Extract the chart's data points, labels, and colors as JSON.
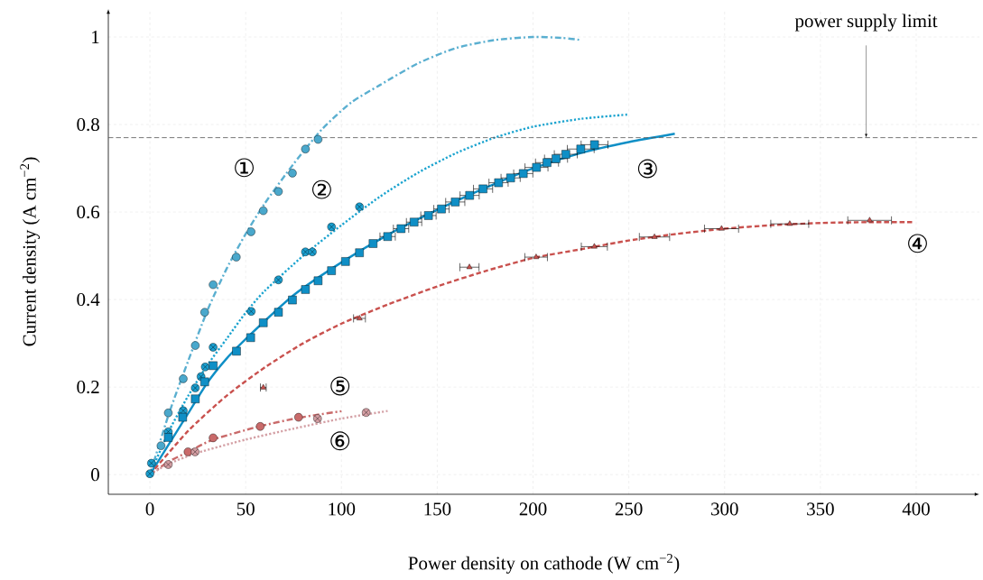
{
  "chart_data": {
    "type": "scatter",
    "xlabel": "Power density on cathode (W cm$^{−2}$)",
    "ylabel": "Current density (A cm$^{−2}$)",
    "xlim": [
      -21.7,
      433
    ],
    "ylim": [
      -0.045,
      1.064
    ],
    "xticks": [
      0,
      50,
      100,
      150,
      200,
      250,
      300,
      350,
      400
    ],
    "yticks": [
      0,
      0.2,
      0.4,
      0.6,
      0.8,
      1
    ],
    "grid": true,
    "series": [
      {
        "type": "line",
        "line_style": "dashdot",
        "color": "#5aafd0",
        "x": [
          0,
          10,
          20,
          30,
          40,
          50,
          60,
          75,
          90,
          105,
          120,
          140,
          160,
          180,
          200,
          215,
          225
        ],
        "values": [
          0,
          0.14,
          0.26,
          0.375,
          0.47,
          0.55,
          0.62,
          0.71,
          0.79,
          0.85,
          0.89,
          0.94,
          0.975,
          0.993,
          1.0,
          0.998,
          0.993
        ]
      },
      {
        "type": "line",
        "line_style": "dotted",
        "color": "#1aa3cf",
        "x": [
          0,
          10,
          20,
          30,
          40,
          50,
          60,
          80,
          100,
          120,
          140,
          160,
          180,
          200,
          225,
          250
        ],
        "values": [
          0,
          0.1,
          0.18,
          0.25,
          0.31,
          0.37,
          0.42,
          0.5,
          0.57,
          0.635,
          0.69,
          0.735,
          0.77,
          0.795,
          0.813,
          0.823
        ]
      },
      {
        "type": "line",
        "line_style": "solid",
        "color": "#0f8fc6",
        "x": [
          0,
          10,
          20,
          30,
          40,
          50,
          75,
          100,
          125,
          150,
          175,
          200,
          225,
          250,
          274
        ],
        "values": [
          0,
          0.07,
          0.14,
          0.21,
          0.265,
          0.31,
          0.41,
          0.485,
          0.55,
          0.605,
          0.655,
          0.7,
          0.735,
          0.76,
          0.779
        ]
      },
      {
        "type": "line",
        "line_style": "dashed",
        "color": "#c9514e",
        "x": [
          0,
          20,
          40,
          60,
          80,
          100,
          125,
          150,
          175,
          200,
          225,
          250,
          275,
          300,
          325,
          350,
          375,
          398
        ],
        "values": [
          0,
          0.1,
          0.18,
          0.245,
          0.3,
          0.345,
          0.39,
          0.43,
          0.465,
          0.495,
          0.515,
          0.535,
          0.55,
          0.562,
          0.57,
          0.575,
          0.577,
          0.577
        ]
      },
      {
        "type": "line",
        "line_style": "dashdot",
        "color": "#c96a6a",
        "x": [
          0,
          10,
          20,
          33,
          57,
          78,
          100
        ],
        "values": [
          0,
          0.03,
          0.052,
          0.08,
          0.11,
          0.13,
          0.145
        ]
      },
      {
        "type": "line",
        "line_style": "dotted",
        "color": "#d4a0a5",
        "x": [
          0,
          10,
          25,
          50,
          75,
          100,
          125
        ],
        "values": [
          0,
          0.025,
          0.05,
          0.08,
          0.105,
          0.128,
          0.146
        ]
      },
      {
        "marker": "circle",
        "color": "#4aa8cc",
        "x": [
          5.8,
          9.6,
          17.4,
          23.7,
          28.6,
          33.0,
          45.1,
          52.8,
          59.2,
          67.1,
          74.4,
          81.2,
          87.8
        ],
        "values": [
          0.066,
          0.141,
          0.219,
          0.295,
          0.371,
          0.434,
          0.497,
          0.555,
          0.603,
          0.647,
          0.689,
          0.744,
          0.766
        ]
      },
      {
        "marker": "cross",
        "color": "#1a9fd0",
        "x": [
          0,
          0.8,
          9.6,
          17.4,
          23.7,
          26.7,
          28.9,
          33.0,
          52.9,
          67.1,
          81.2,
          84.8,
          94.8,
          109.4
        ],
        "values": [
          0.002,
          0.026,
          0.098,
          0.146,
          0.198,
          0.224,
          0.246,
          0.291,
          0.373,
          0.445,
          0.509,
          0.509,
          0.566,
          0.612
        ]
      },
      {
        "marker": "square",
        "color": "#0f8fc6",
        "x": [
          9.6,
          17.1,
          23.7,
          28.6,
          33.0,
          45.2,
          52.6,
          59.2,
          67.1,
          74.4,
          81.2,
          87.8,
          94.8,
          102.1,
          109.4,
          116.5,
          124.1,
          131.1,
          137.9,
          145.4,
          152.2,
          159.4,
          166.9,
          173.9,
          182.0,
          188.3,
          194.9,
          201.8,
          207.3,
          212.0,
          217.1,
          224.9,
          232.1
        ],
        "values": [
          0.085,
          0.131,
          0.173,
          0.212,
          0.249,
          0.282,
          0.313,
          0.347,
          0.371,
          0.399,
          0.423,
          0.443,
          0.466,
          0.487,
          0.507,
          0.528,
          0.544,
          0.562,
          0.577,
          0.592,
          0.607,
          0.623,
          0.638,
          0.653,
          0.667,
          0.678,
          0.688,
          0.702,
          0.713,
          0.722,
          0.732,
          0.744,
          0.754
        ],
        "xerrors": [
          null,
          null,
          null,
          null,
          null,
          null,
          null,
          null,
          null,
          null,
          null,
          null,
          null,
          null,
          null,
          null,
          4,
          4,
          4,
          4,
          4,
          5,
          5,
          5,
          5,
          5,
          5,
          6,
          6,
          6,
          6,
          7,
          7
        ]
      },
      {
        "marker": "triangle",
        "color": "#c9514e",
        "x": [
          109.4,
          166.8,
          201.6,
          232,
          263.4,
          298.4,
          334,
          375.7
        ],
        "values": [
          0.357,
          0.474,
          0.497,
          0.521,
          0.543,
          0.562,
          0.573,
          0.581
        ],
        "xerrors": [
          3.1,
          5,
          5.9,
          6.8,
          7.9,
          8.9,
          9.9,
          11.4
        ]
      },
      {
        "marker": "triangle",
        "color": "#c9514e",
        "x": [
          59.2
        ],
        "values": [
          0.199
        ],
        "xerrors": [
          1.5
        ]
      },
      {
        "marker": "circle",
        "color": "#c96a6a",
        "x": [
          19.9,
          33.0,
          57.6,
          77.6
        ],
        "values": [
          0.052,
          0.084,
          0.11,
          0.131
        ]
      },
      {
        "marker": "cross",
        "color": "#d49ea3",
        "x": [
          9.6,
          23.6,
          87.5,
          112.9
        ],
        "values": [
          0.023,
          0.052,
          0.128,
          0.142
        ]
      }
    ],
    "ref_lines": [
      {
        "axis": "y",
        "value": 0.77,
        "label": "power supply limit",
        "color": "#555555",
        "line_style": "dashed"
      }
    ],
    "annotations": [
      "①",
      "②",
      "③",
      "④",
      "⑤",
      "⑥"
    ]
  }
}
